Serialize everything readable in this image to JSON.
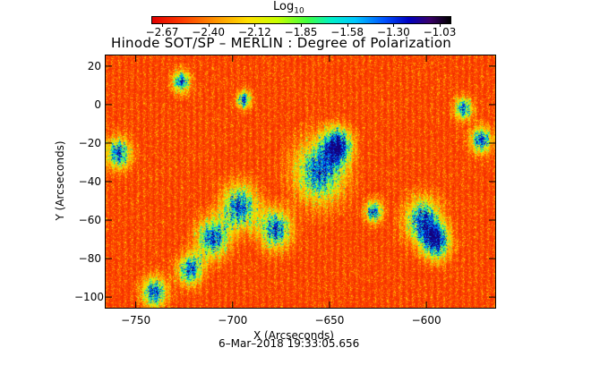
{
  "colorbar": {
    "title_main": "Log",
    "title_sub": "10",
    "labels": [
      "−2.67",
      "−2.40",
      "−2.12",
      "−1.85",
      "−1.58",
      "−1.30",
      "−1.03"
    ]
  },
  "title": "Hinode SOT/SP – MERLIN : Degree of Polarization",
  "axes": {
    "y_ticks": [
      "20",
      "0",
      "−20",
      "−40",
      "−60",
      "−80",
      "−100"
    ],
    "x_ticks": [
      "−750",
      "−700",
      "−650",
      "−600"
    ],
    "xlabel": "X (Arcseconds)",
    "ylabel": "Y (Arcseconds)",
    "xlim": [
      -766,
      -564
    ],
    "ylim": [
      -106,
      26
    ]
  },
  "timestamp": "6–Mar–2018 19:33:05.656"
}
